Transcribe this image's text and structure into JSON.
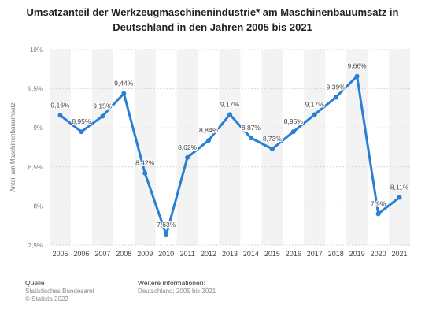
{
  "title": "Umsatzanteil der Werkzeugmaschinenindustrie* am Maschinenbauumsatz in Deutschland in den Jahren 2005 bis 2021",
  "chart_data": {
    "type": "line",
    "title": "Umsatzanteil der Werkzeugmaschinenindustrie* am Maschinenbauumsatz in Deutschland in den Jahren 2005 bis 2021",
    "xlabel": "",
    "ylabel": "Anteil am Maschinenbauumsatz",
    "ylim": [
      7.5,
      10
    ],
    "yticks": [
      7.5,
      8,
      8.5,
      9,
      9.5,
      10
    ],
    "ytick_labels": [
      "7,5%",
      "8%",
      "8,5%",
      "9%",
      "9,5%",
      "10%"
    ],
    "grid": true,
    "categories": [
      "2005",
      "2006",
      "2007",
      "2008",
      "2009",
      "2010",
      "2011",
      "2012",
      "2013",
      "2014",
      "2015",
      "2016",
      "2017",
      "2018",
      "2019",
      "2020",
      "2021"
    ],
    "series": [
      {
        "values": [
          9.16,
          8.95,
          9.15,
          9.44,
          8.42,
          7.63,
          8.62,
          8.84,
          9.17,
          8.87,
          8.73,
          8.95,
          9.17,
          9.39,
          9.66,
          7.9,
          8.11
        ],
        "labels": [
          "9,16%",
          "8,95%",
          "9,15%",
          "9,44%",
          "8,42%",
          "7,63%",
          "8,62%",
          "8,84%",
          "9,17%",
          "8,87%",
          "8,73%",
          "8,95%",
          "9,17%",
          "9,39%",
          "9,66%",
          "7,9%",
          "8,11%"
        ],
        "color": "#2a7fd4"
      }
    ]
  },
  "footer": {
    "source_heading": "Quelle",
    "source_lines": [
      "Statistisches Bundesamt",
      "© Statista 2022"
    ],
    "info_heading": "Weitere Informationen:",
    "info_lines": [
      "Deutschland; 2005 bis 2021"
    ]
  }
}
